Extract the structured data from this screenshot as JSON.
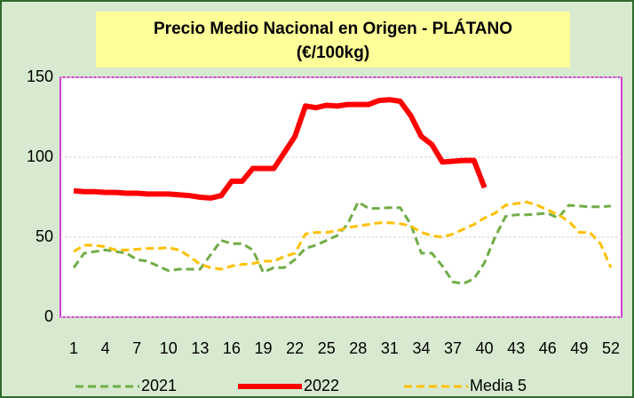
{
  "chart_data": {
    "type": "line",
    "title": [
      "Precio Medio Nacional en Origen - PLÁTANO",
      "(€/100kg)"
    ],
    "categories": [
      "1",
      null,
      null,
      "4",
      null,
      null,
      "7",
      null,
      null,
      "10",
      null,
      null,
      "13",
      null,
      null,
      "16",
      null,
      null,
      "19",
      null,
      null,
      "22",
      null,
      null,
      "25",
      null,
      null,
      "28",
      null,
      null,
      "31",
      null,
      null,
      "34",
      null,
      null,
      "37",
      null,
      null,
      "40",
      null,
      null,
      "43",
      null,
      null,
      "46",
      null,
      null,
      "49",
      null,
      null,
      "52"
    ],
    "ylim": [
      0,
      150
    ],
    "yticks": [
      0,
      50,
      100,
      150
    ],
    "grid": true,
    "series": [
      {
        "name": "2021",
        "color": "#70ad47",
        "dash": true,
        "values": [
          31,
          40,
          41,
          42,
          41,
          40,
          36,
          35,
          32,
          29,
          30,
          30,
          30,
          39,
          48,
          46,
          46,
          42,
          28,
          31,
          31,
          36,
          43,
          45,
          48,
          51,
          58,
          72,
          68,
          68,
          68.5,
          68.5,
          58,
          40,
          40,
          32,
          22,
          21,
          24,
          34,
          50,
          63,
          64,
          64,
          64.5,
          65,
          62,
          70,
          69.5,
          69,
          69,
          69.5
        ]
      },
      {
        "name": "2022",
        "color": "#ff0000",
        "dash": false,
        "values": [
          79,
          78.5,
          78.5,
          78,
          78,
          77.5,
          77.5,
          77,
          77,
          77,
          76.5,
          76,
          75,
          74.5,
          76,
          85,
          85,
          93,
          93,
          93,
          103,
          113,
          132,
          131,
          132.5,
          132,
          133,
          133,
          133,
          135.5,
          136,
          135,
          126,
          113,
          108,
          97,
          97.5,
          98,
          98,
          81,
          null,
          null,
          null,
          null,
          null,
          null,
          null,
          null,
          null,
          null,
          null,
          null
        ]
      },
      {
        "name": "Media 5",
        "color": "#ffc000",
        "dash": true,
        "values": [
          41,
          45,
          45,
          44,
          42,
          42,
          42.5,
          43,
          43,
          43.5,
          42,
          38,
          33,
          31,
          30,
          32,
          33,
          33.5,
          35,
          35,
          38,
          40,
          52,
          53,
          53,
          54,
          56,
          57,
          58,
          59,
          59,
          58.5,
          57,
          53,
          51,
          50,
          52,
          55,
          58,
          62,
          65,
          70,
          71,
          72,
          70,
          67,
          64,
          60,
          53,
          53,
          46,
          31
        ]
      }
    ]
  }
}
